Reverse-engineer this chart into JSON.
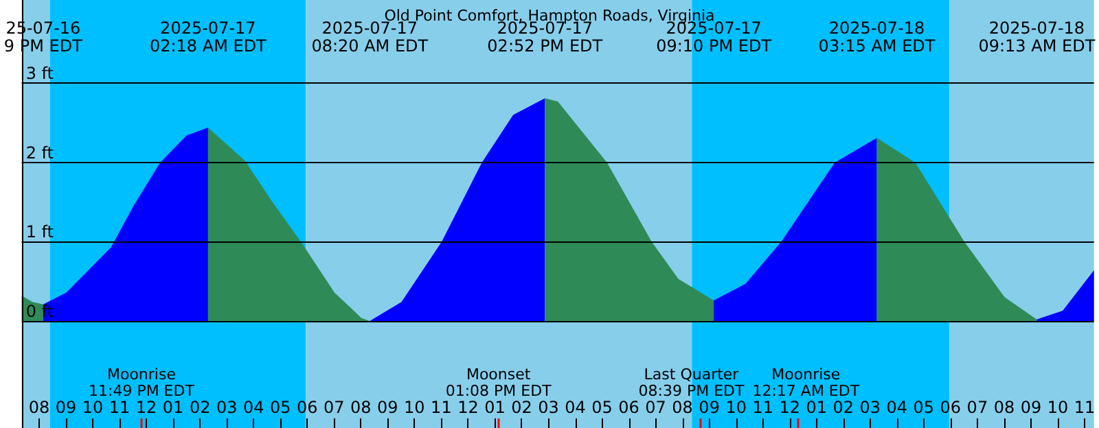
{
  "chart_data": {
    "type": "area",
    "title": "Old Point Comfort, Hampton Roads, Virginia",
    "xlim": [
      "2025-07-16T19:21",
      "2025-07-18T11:21"
    ],
    "ylim": [
      -1.35,
      4.05
    ],
    "yticks": [
      {
        "value": 0,
        "label": "0 ft"
      },
      {
        "value": 1,
        "label": "1 ft"
      },
      {
        "value": 2,
        "label": "2 ft"
      },
      {
        "value": 3,
        "label": "3 ft"
      }
    ],
    "xticks": [
      {
        "value": "2025-07-16T20:00",
        "label": "08"
      },
      {
        "value": "2025-07-16T21:00",
        "label": "09"
      },
      {
        "value": "2025-07-16T22:00",
        "label": "10"
      },
      {
        "value": "2025-07-16T23:00",
        "label": "11"
      },
      {
        "value": "2025-07-17T00:00",
        "label": "12"
      },
      {
        "value": "2025-07-17T01:00",
        "label": "01"
      },
      {
        "value": "2025-07-17T02:00",
        "label": "02"
      },
      {
        "value": "2025-07-17T03:00",
        "label": "03"
      },
      {
        "value": "2025-07-17T04:00",
        "label": "04"
      },
      {
        "value": "2025-07-17T05:00",
        "label": "05"
      },
      {
        "value": "2025-07-17T06:00",
        "label": "06"
      },
      {
        "value": "2025-07-17T07:00",
        "label": "07"
      },
      {
        "value": "2025-07-17T08:00",
        "label": "08"
      },
      {
        "value": "2025-07-17T09:00",
        "label": "09"
      },
      {
        "value": "2025-07-17T10:00",
        "label": "10"
      },
      {
        "value": "2025-07-17T11:00",
        "label": "11"
      },
      {
        "value": "2025-07-17T12:00",
        "label": "12"
      },
      {
        "value": "2025-07-17T13:00",
        "label": "01"
      },
      {
        "value": "2025-07-17T14:00",
        "label": "02"
      },
      {
        "value": "2025-07-17T15:00",
        "label": "03"
      },
      {
        "value": "2025-07-17T16:00",
        "label": "04"
      },
      {
        "value": "2025-07-17T17:00",
        "label": "05"
      },
      {
        "value": "2025-07-17T18:00",
        "label": "06"
      },
      {
        "value": "2025-07-17T19:00",
        "label": "07"
      },
      {
        "value": "2025-07-17T20:00",
        "label": "08"
      },
      {
        "value": "2025-07-17T21:00",
        "label": "09"
      },
      {
        "value": "2025-07-17T22:00",
        "label": "10"
      },
      {
        "value": "2025-07-17T23:00",
        "label": "11"
      },
      {
        "value": "2025-07-18T00:00",
        "label": "12"
      },
      {
        "value": "2025-07-18T01:00",
        "label": "01"
      },
      {
        "value": "2025-07-18T02:00",
        "label": "02"
      },
      {
        "value": "2025-07-18T03:00",
        "label": "03"
      },
      {
        "value": "2025-07-18T04:00",
        "label": "04"
      },
      {
        "value": "2025-07-18T05:00",
        "label": "05"
      },
      {
        "value": "2025-07-18T06:00",
        "label": "06"
      },
      {
        "value": "2025-07-18T07:00",
        "label": "07"
      },
      {
        "value": "2025-07-18T08:00",
        "label": "08"
      },
      {
        "value": "2025-07-18T09:00",
        "label": "09"
      },
      {
        "value": "2025-07-18T10:00",
        "label": "10"
      },
      {
        "value": "2025-07-18T11:00",
        "label": "11"
      }
    ],
    "grid": "y",
    "x2lim": [
      "2025-07-16T19:21",
      "2025-07-18T11:21"
    ],
    "x2ticks": [
      {
        "value": "2025-07-16T20:09",
        "label": "25-07-16\n9 PM EDT"
      },
      {
        "value": "2025-07-17T02:18",
        "label": "2025-07-17\n02:18 AM EDT"
      },
      {
        "value": "2025-07-17T08:20",
        "label": "2025-07-17\n08:20 AM EDT"
      },
      {
        "value": "2025-07-17T14:52",
        "label": "2025-07-17\n02:52 PM EDT"
      },
      {
        "value": "2025-07-17T21:10",
        "label": "2025-07-17\n09:10 PM EDT"
      },
      {
        "value": "2025-07-18T03:15",
        "label": "2025-07-18\n03:15 AM EDT"
      },
      {
        "value": "2025-07-18T09:13",
        "label": "2025-07-18\n09:13 AM EDT"
      }
    ],
    "series": [
      {
        "color": "#2e8b57",
        "x": [
          "2025-07-16T19:21",
          "2025-07-16T19:45",
          "2025-07-16T20:09"
        ],
        "values": [
          0.32,
          0.24,
          0.21
        ]
      },
      {
        "color": "#0000ff",
        "x": [
          "2025-07-16T20:09",
          "2025-07-16T21:01",
          "2025-07-16T22:41",
          "2025-07-16T23:31",
          "2025-07-17T00:31",
          "2025-07-17T01:30",
          "2025-07-17T02:18"
        ],
        "values": [
          0.21,
          0.36,
          0.93,
          1.45,
          2.0,
          2.34,
          2.44
        ]
      },
      {
        "color": "#2e8b57",
        "x": [
          "2025-07-17T02:18",
          "2025-07-17T03:41",
          "2025-07-17T04:41",
          "2025-07-17T05:46",
          "2025-07-17T07:01",
          "2025-07-17T08:01",
          "2025-07-17T08:20"
        ],
        "values": [
          2.44,
          2.02,
          1.51,
          1.0,
          0.36,
          0.04,
          0.0
        ]
      },
      {
        "color": "#0000ff",
        "x": [
          "2025-07-17T08:20",
          "2025-07-17T09:31",
          "2025-07-17T11:01",
          "2025-07-17T12:31",
          "2025-07-17T13:41",
          "2025-07-17T14:52"
        ],
        "values": [
          0.0,
          0.24,
          1.0,
          2.0,
          2.6,
          2.81
        ]
      },
      {
        "color": "#2e8b57",
        "x": [
          "2025-07-17T14:52",
          "2025-07-17T15:21",
          "2025-07-17T17:11",
          "2025-07-17T18:51",
          "2025-07-17T19:51",
          "2025-07-17T21:10"
        ],
        "values": [
          2.81,
          2.77,
          2.0,
          1.0,
          0.53,
          0.26
        ]
      },
      {
        "color": "#0000ff",
        "x": [
          "2025-07-17T21:10",
          "2025-07-17T22:21",
          "2025-07-17T23:41",
          "2025-07-18T01:41",
          "2025-07-18T03:15"
        ],
        "values": [
          0.26,
          0.47,
          1.0,
          2.0,
          2.31
        ]
      },
      {
        "color": "#2e8b57",
        "x": [
          "2025-07-18T03:15",
          "2025-07-18T04:41",
          "2025-07-18T06:31",
          "2025-07-18T08:01",
          "2025-07-18T09:13"
        ],
        "values": [
          2.31,
          2.0,
          1.0,
          0.3,
          0.02
        ]
      },
      {
        "color": "#0000ff",
        "x": [
          "2025-07-18T09:13",
          "2025-07-18T10:11",
          "2025-07-18T11:21"
        ],
        "values": [
          0.02,
          0.13,
          0.64
        ]
      }
    ],
    "bands": [
      {
        "axis": "x",
        "from": "2025-07-16T19:21",
        "to": "2025-07-16T20:24",
        "color": "#87ceeb"
      },
      {
        "axis": "x",
        "from": "2025-07-16T20:24",
        "to": "2025-07-17T05:57",
        "color": "#00bfff"
      },
      {
        "axis": "x",
        "from": "2025-07-17T05:57",
        "to": "2025-07-17T20:21",
        "color": "#87ceeb"
      },
      {
        "axis": "x",
        "from": "2025-07-17T20:21",
        "to": "2025-07-18T05:57",
        "color": "#00bfff"
      },
      {
        "axis": "x",
        "from": "2025-07-18T05:57",
        "to": "2025-07-18T11:21",
        "color": "#87ceeb"
      }
    ],
    "ref_lines": [
      {
        "axis": "x",
        "value": "2025-07-16T23:49",
        "label": "Moonrise\n11:49 PM EDT",
        "color": "#ff0000"
      },
      {
        "axis": "x",
        "value": "2025-07-17T13:08",
        "label": "Moonset\n01:08 PM EDT",
        "color": "#ff0000"
      },
      {
        "axis": "x",
        "value": "2025-07-17T20:39",
        "label": "Last Quarter\n08:39 PM EDT",
        "color": "#ff0000"
      },
      {
        "axis": "x",
        "value": "2025-07-18T00:17",
        "label": "Moonrise\n12:17 AM EDT",
        "color": "#ff0000"
      }
    ]
  }
}
